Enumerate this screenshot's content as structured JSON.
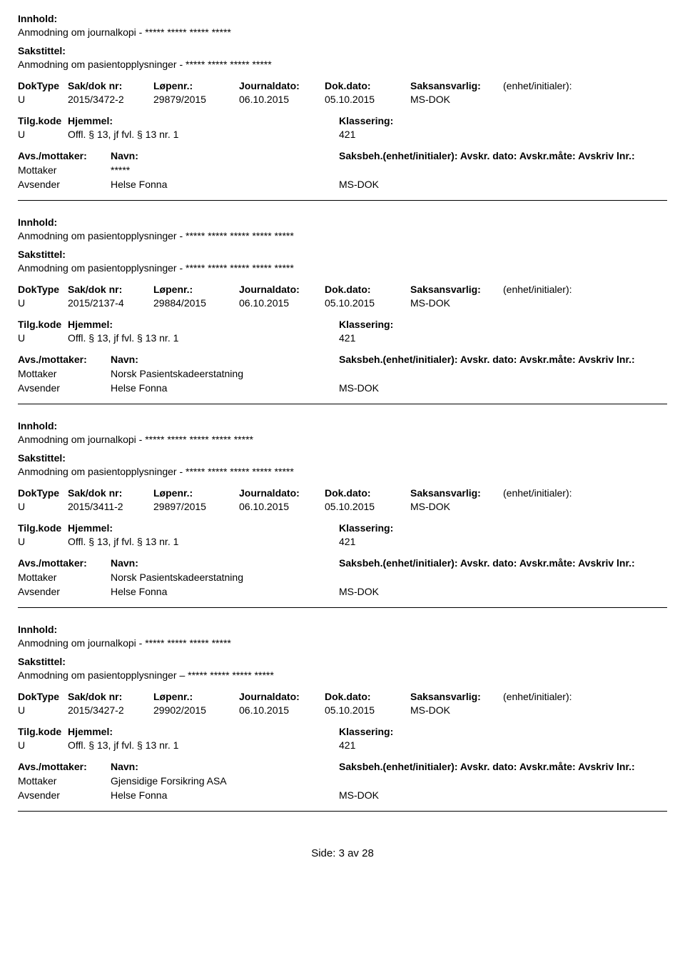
{
  "labels": {
    "innhold": "Innhold:",
    "sakstittel": "Sakstittel:",
    "doktype": "DokType",
    "sakdoknr": "Sak/dok nr:",
    "lopenr": "Løpenr.:",
    "journaldato": "Journaldato:",
    "dokdato": "Dok.dato:",
    "saksansvarlig": "Saksansvarlig:",
    "enhet": "(enhet/initialer):",
    "tilgkode": "Tilg.kode",
    "hjemmel": "Hjemmel:",
    "klassering": "Klassering:",
    "avs_mottaker": "Avs./mottaker:",
    "navn": "Navn:",
    "saksbeh_long": "Saksbeh.(enhet/initialer): Avskr. dato:  Avskr.måte:  Avskriv lnr.:",
    "mottaker": "Mottaker",
    "avsender": "Avsender"
  },
  "records": [
    {
      "innhold": "Anmodning om journalkopi - ***** ***** ***** *****",
      "sakstittel": "Anmodning om pasientopplysninger - ***** ***** ***** *****",
      "doktype": "U",
      "sakdok": "2015/3472-2",
      "lopenr": "29879/2015",
      "journaldato": "06.10.2015",
      "dokdato": "05.10.2015",
      "saksansv": "MS-DOK",
      "tilgkode": "U",
      "hjemmel": "Offl. § 13, jf fvl. § 13 nr. 1",
      "klassering": "421",
      "mottaker_navn": "*****",
      "avsender_navn": "Helse Fonna",
      "avsender_unit": "MS-DOK"
    },
    {
      "innhold": "Anmodning om pasientopplysninger - ***** ***** ***** ***** *****",
      "sakstittel": "Anmodning om pasientopplysninger - ***** ***** ***** ***** *****",
      "doktype": "U",
      "sakdok": "2015/2137-4",
      "lopenr": "29884/2015",
      "journaldato": "06.10.2015",
      "dokdato": "05.10.2015",
      "saksansv": "MS-DOK",
      "tilgkode": "U",
      "hjemmel": "Offl. § 13, jf fvl. § 13 nr. 1",
      "klassering": "421",
      "mottaker_navn": "Norsk Pasientskadeerstatning",
      "avsender_navn": "Helse Fonna",
      "avsender_unit": "MS-DOK"
    },
    {
      "innhold": "Anmodning om journalkopi - ***** ***** ***** ***** *****",
      "sakstittel": "Anmodning om pasientopplysninger - ***** ***** ***** ***** *****",
      "doktype": "U",
      "sakdok": "2015/3411-2",
      "lopenr": "29897/2015",
      "journaldato": "06.10.2015",
      "dokdato": "05.10.2015",
      "saksansv": "MS-DOK",
      "tilgkode": "U",
      "hjemmel": "Offl. § 13, jf fvl. § 13 nr. 1",
      "klassering": "421",
      "mottaker_navn": "Norsk Pasientskadeerstatning",
      "avsender_navn": "Helse Fonna",
      "avsender_unit": "MS-DOK"
    },
    {
      "innhold": "Anmodning om journalkopi - ***** ***** ***** *****",
      "sakstittel": "Anmodning om pasientopplysninger – ***** ***** ***** *****",
      "doktype": "U",
      "sakdok": "2015/3427-2",
      "lopenr": "29902/2015",
      "journaldato": "06.10.2015",
      "dokdato": "05.10.2015",
      "saksansv": "MS-DOK",
      "tilgkode": "U",
      "hjemmel": "Offl. § 13, jf fvl. § 13 nr. 1",
      "klassering": "421",
      "mottaker_navn": "Gjensidige Forsikring ASA",
      "avsender_navn": "Helse Fonna",
      "avsender_unit": "MS-DOK"
    }
  ],
  "footer": "Side:  3 av 28"
}
